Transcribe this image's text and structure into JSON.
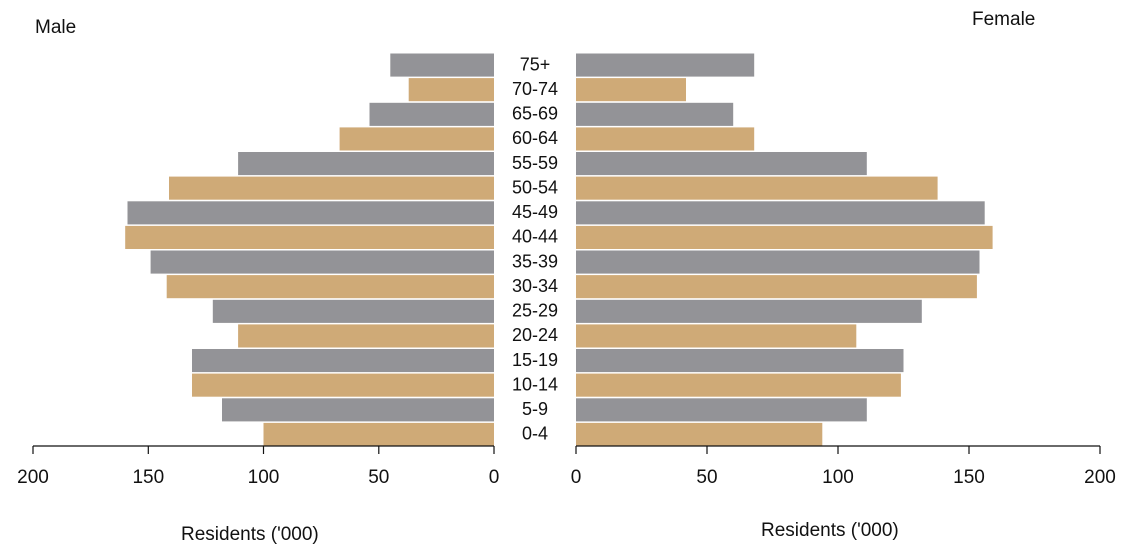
{
  "chart_data": {
    "type": "bar",
    "orientation": "horizontal",
    "layout": "population-pyramid",
    "categories": [
      "0-4",
      "5-9",
      "10-14",
      "15-19",
      "20-24",
      "25-29",
      "30-34",
      "35-39",
      "40-44",
      "45-49",
      "50-54",
      "55-59",
      "60-64",
      "65-69",
      "70-74",
      "75+"
    ],
    "series": [
      {
        "name": "Male",
        "values": [
          100,
          118,
          131,
          131,
          111,
          122,
          142,
          149,
          160,
          159,
          141,
          111,
          67,
          54,
          37,
          45
        ]
      },
      {
        "name": "Female",
        "values": [
          94,
          111,
          124,
          125,
          107,
          132,
          153,
          154,
          159,
          156,
          138,
          111,
          68,
          60,
          42,
          68
        ]
      }
    ],
    "side_labels": {
      "male": "Male",
      "female": "Female"
    },
    "left_axis": {
      "title": "Residents ('000)",
      "ticks": [
        "200",
        "150",
        "100",
        "50",
        "0"
      ],
      "range": [
        0,
        200
      ],
      "reversed": true
    },
    "right_axis": {
      "title": "Residents ('000)",
      "ticks": [
        "0",
        "50",
        "100",
        "150",
        "200"
      ],
      "range": [
        0,
        200
      ]
    },
    "colors": {
      "grey_band": "#939397",
      "tan_band": "#cfaa77",
      "axis": "#111111",
      "background": "#ffffff"
    },
    "grid": false,
    "legend": "none"
  }
}
